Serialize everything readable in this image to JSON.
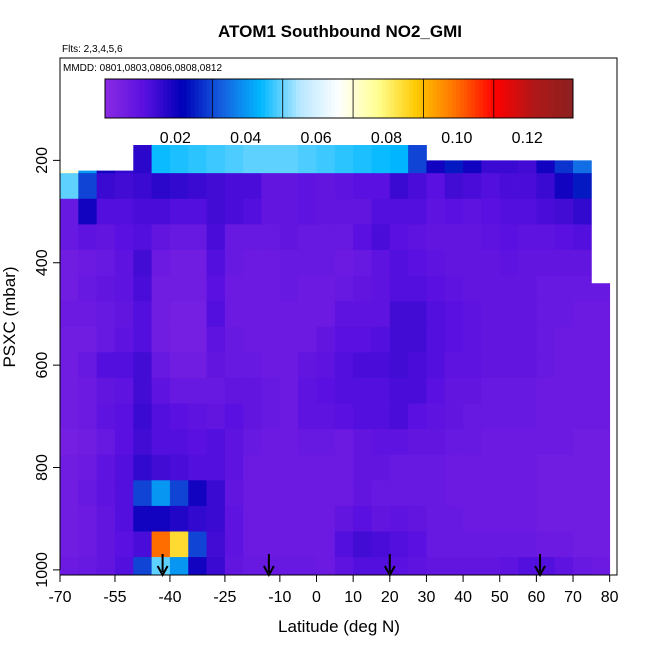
{
  "chart_data": {
    "type": "heatmap",
    "title": "ATOM1 Southbound NO2_GMI",
    "flights_note": "Flts: 2,3,4,5,6",
    "dates_note": "MMDD: 0801,0803,0806,0808,0812",
    "xlabel": "Latitude (deg N)",
    "ylabel": "PSXC (mbar)",
    "xlim": [
      -70,
      82
    ],
    "ylim": [
      1010,
      0
    ],
    "x_ticks": [
      "-70",
      "-55",
      "-40",
      "-25",
      "-10",
      "0",
      "10",
      "20",
      "30",
      "40",
      "50",
      "60",
      "70",
      "80"
    ],
    "y_ticks": [
      "200",
      "400",
      "600",
      "800",
      "1000"
    ],
    "colorbar": {
      "range": [
        0.0,
        0.133
      ],
      "ticks": [
        "0.02",
        "0.04",
        "0.06",
        "0.08",
        "0.10",
        "0.12"
      ],
      "colors": [
        "#8a2be2",
        "#5a10e0",
        "#0000b8",
        "#1560e0",
        "#00b8ff",
        "#b8e8ff",
        "#ffffff",
        "#ffff90",
        "#ffc800",
        "#ff7000",
        "#ff0000",
        "#b01818",
        "#8b2020"
      ]
    },
    "pressure_levels": [
      200,
      250,
      300,
      350,
      400,
      450,
      500,
      550,
      600,
      650,
      700,
      750,
      800,
      850,
      900,
      950,
      1000
    ],
    "columns": [
      {
        "lat": -67.5,
        "top": 220,
        "values": [
          0.07,
          0.05,
          0.008,
          0.008,
          0.006,
          0.006,
          0.007,
          0.006,
          0.006,
          0.006,
          0.006,
          0.005,
          0.006,
          0.006,
          0.006,
          0.006,
          0.007
        ]
      },
      {
        "lat": -62.5,
        "top": 220,
        "values": [
          0.04,
          0.03,
          0.02,
          0.01,
          0.007,
          0.008,
          0.007,
          0.006,
          0.008,
          0.007,
          0.007,
          0.006,
          0.007,
          0.008,
          0.007,
          0.007,
          0.008
        ]
      },
      {
        "lat": -57.5,
        "top": 220,
        "values": [
          0.02,
          0.015,
          0.012,
          0.009,
          0.008,
          0.009,
          0.008,
          0.008,
          0.012,
          0.009,
          0.01,
          0.008,
          0.01,
          0.01,
          0.009,
          0.009,
          0.009
        ]
      },
      {
        "lat": -52.5,
        "top": 220,
        "values": [
          0.016,
          0.014,
          0.012,
          0.011,
          0.01,
          0.01,
          0.009,
          0.01,
          0.012,
          0.01,
          0.011,
          0.011,
          0.012,
          0.012,
          0.012,
          0.011,
          0.012
        ]
      },
      {
        "lat": -47.5,
        "top": 170,
        "values": [
          0.017,
          0.015,
          0.013,
          0.012,
          0.014,
          0.013,
          0.012,
          0.012,
          0.014,
          0.014,
          0.015,
          0.014,
          0.016,
          0.03,
          0.02,
          0.013,
          0.03
        ]
      },
      {
        "lat": -42.5,
        "top": 170,
        "values": [
          0.045,
          0.017,
          0.013,
          0.009,
          0.007,
          0.006,
          0.006,
          0.006,
          0.008,
          0.01,
          0.012,
          0.012,
          0.014,
          0.04,
          0.02,
          0.1,
          0.05
        ]
      },
      {
        "lat": -37.5,
        "top": 170,
        "values": [
          0.046,
          0.016,
          0.012,
          0.008,
          0.006,
          0.006,
          0.005,
          0.005,
          0.006,
          0.008,
          0.011,
          0.012,
          0.013,
          0.03,
          0.018,
          0.085,
          0.04
        ]
      },
      {
        "lat": -32.5,
        "top": 170,
        "values": [
          0.047,
          0.015,
          0.012,
          0.008,
          0.006,
          0.006,
          0.005,
          0.005,
          0.006,
          0.008,
          0.01,
          0.011,
          0.012,
          0.02,
          0.016,
          0.03,
          0.02
        ]
      },
      {
        "lat": -27.5,
        "top": 170,
        "values": [
          0.048,
          0.014,
          0.014,
          0.013,
          0.012,
          0.011,
          0.012,
          0.01,
          0.009,
          0.008,
          0.009,
          0.012,
          0.012,
          0.015,
          0.015,
          0.014,
          0.015
        ]
      },
      {
        "lat": -22.5,
        "top": 170,
        "values": [
          0.049,
          0.013,
          0.013,
          0.008,
          0.008,
          0.007,
          0.007,
          0.008,
          0.008,
          0.009,
          0.011,
          0.01,
          0.01,
          0.009,
          0.01,
          0.01,
          0.009
        ]
      },
      {
        "lat": -17.5,
        "top": 170,
        "values": [
          0.05,
          0.013,
          0.012,
          0.008,
          0.007,
          0.007,
          0.007,
          0.007,
          0.008,
          0.009,
          0.009,
          0.008,
          0.007,
          0.007,
          0.007,
          0.007,
          0.008
        ]
      },
      {
        "lat": -12.5,
        "top": 170,
        "values": [
          0.05,
          0.009,
          0.009,
          0.008,
          0.007,
          0.007,
          0.007,
          0.007,
          0.007,
          0.008,
          0.008,
          0.007,
          0.007,
          0.007,
          0.007,
          0.007,
          0.008
        ]
      },
      {
        "lat": -7.5,
        "top": 170,
        "values": [
          0.05,
          0.009,
          0.009,
          0.009,
          0.008,
          0.008,
          0.007,
          0.007,
          0.007,
          0.007,
          0.007,
          0.007,
          0.007,
          0.007,
          0.007,
          0.007,
          0.008
        ]
      },
      {
        "lat": -2.5,
        "top": 170,
        "values": [
          0.049,
          0.01,
          0.01,
          0.008,
          0.008,
          0.007,
          0.007,
          0.007,
          0.009,
          0.01,
          0.01,
          0.008,
          0.007,
          0.007,
          0.007,
          0.007,
          0.008
        ]
      },
      {
        "lat": 2.5,
        "top": 170,
        "values": [
          0.048,
          0.009,
          0.009,
          0.008,
          0.008,
          0.007,
          0.007,
          0.009,
          0.01,
          0.011,
          0.01,
          0.008,
          0.007,
          0.007,
          0.007,
          0.007,
          0.007
        ]
      },
      {
        "lat": 7.5,
        "top": 170,
        "values": [
          0.047,
          0.01,
          0.009,
          0.008,
          0.007,
          0.008,
          0.01,
          0.011,
          0.012,
          0.012,
          0.011,
          0.007,
          0.007,
          0.007,
          0.009,
          0.012,
          0.01
        ]
      },
      {
        "lat": 12.5,
        "top": 170,
        "values": [
          0.046,
          0.011,
          0.009,
          0.011,
          0.008,
          0.009,
          0.01,
          0.011,
          0.013,
          0.012,
          0.012,
          0.009,
          0.009,
          0.009,
          0.011,
          0.014,
          0.012
        ]
      },
      {
        "lat": 17.5,
        "top": 170,
        "values": [
          0.045,
          0.011,
          0.012,
          0.013,
          0.01,
          0.01,
          0.01,
          0.012,
          0.013,
          0.012,
          0.012,
          0.01,
          0.009,
          0.008,
          0.009,
          0.013,
          0.012
        ]
      },
      {
        "lat": 22.5,
        "top": 170,
        "values": [
          0.044,
          0.015,
          0.012,
          0.011,
          0.012,
          0.012,
          0.014,
          0.014,
          0.014,
          0.013,
          0.013,
          0.01,
          0.008,
          0.008,
          0.01,
          0.012,
          0.011
        ]
      },
      {
        "lat": 27.5,
        "top": 170,
        "values": [
          0.03,
          0.013,
          0.012,
          0.01,
          0.011,
          0.012,
          0.014,
          0.014,
          0.013,
          0.013,
          0.011,
          0.009,
          0.008,
          0.008,
          0.009,
          0.011,
          0.01
        ]
      },
      {
        "lat": 32.5,
        "top": 200,
        "values": [
          0.02,
          0.011,
          0.01,
          0.009,
          0.01,
          0.011,
          0.012,
          0.012,
          0.012,
          0.011,
          0.01,
          0.009,
          0.008,
          0.008,
          0.008,
          0.008,
          0.009
        ]
      },
      {
        "lat": 37.5,
        "top": 200,
        "values": [
          0.025,
          0.014,
          0.011,
          0.009,
          0.009,
          0.01,
          0.011,
          0.011,
          0.01,
          0.009,
          0.009,
          0.008,
          0.007,
          0.007,
          0.008,
          0.008,
          0.009
        ]
      },
      {
        "lat": 42.5,
        "top": 200,
        "values": [
          0.02,
          0.013,
          0.01,
          0.009,
          0.009,
          0.009,
          0.01,
          0.01,
          0.01,
          0.009,
          0.008,
          0.008,
          0.007,
          0.007,
          0.007,
          0.008,
          0.009
        ]
      },
      {
        "lat": 47.5,
        "top": 200,
        "values": [
          0.015,
          0.012,
          0.011,
          0.01,
          0.009,
          0.009,
          0.009,
          0.009,
          0.009,
          0.008,
          0.008,
          0.007,
          0.007,
          0.007,
          0.007,
          0.008,
          0.009
        ]
      },
      {
        "lat": 52.5,
        "top": 200,
        "values": [
          0.015,
          0.013,
          0.012,
          0.011,
          0.01,
          0.009,
          0.009,
          0.009,
          0.009,
          0.008,
          0.008,
          0.007,
          0.007,
          0.007,
          0.007,
          0.008,
          0.01
        ]
      },
      {
        "lat": 57.5,
        "top": 200,
        "values": [
          0.014,
          0.013,
          0.012,
          0.01,
          0.009,
          0.009,
          0.009,
          0.009,
          0.009,
          0.008,
          0.008,
          0.007,
          0.007,
          0.007,
          0.007,
          0.008,
          0.012
        ]
      },
      {
        "lat": 62.5,
        "top": 200,
        "values": [
          0.02,
          0.015,
          0.013,
          0.01,
          0.009,
          0.008,
          0.008,
          0.008,
          0.008,
          0.007,
          0.007,
          0.007,
          0.006,
          0.006,
          0.006,
          0.007,
          0.012
        ]
      },
      {
        "lat": 67.5,
        "top": 200,
        "values": [
          0.028,
          0.02,
          0.014,
          0.011,
          0.009,
          0.008,
          0.008,
          0.007,
          0.007,
          0.007,
          0.007,
          0.007,
          0.006,
          0.006,
          0.006,
          0.007,
          0.01
        ]
      },
      {
        "lat": 72.5,
        "top": 200,
        "values": [
          0.035,
          0.025,
          0.016,
          0.012,
          0.009,
          0.008,
          0.007,
          0.007,
          0.007,
          0.007,
          0.007,
          0.006,
          0.006,
          0.006,
          0.006,
          0.006,
          0.008
        ]
      },
      {
        "lat": 77.5,
        "top": 440,
        "values": [
          0.0,
          0.0,
          0.0,
          0.0,
          0.0,
          0.008,
          0.007,
          0.007,
          0.007,
          0.007,
          0.007,
          0.006,
          0.006,
          0.006,
          0.006,
          0.006,
          0.007
        ]
      }
    ],
    "flight_markers_lat": [
      -42,
      -13,
      20,
      61
    ]
  }
}
